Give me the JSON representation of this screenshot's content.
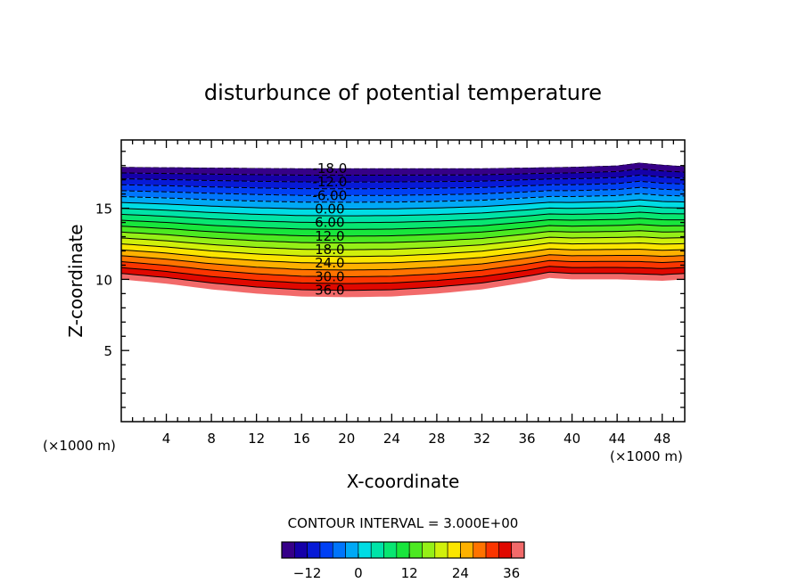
{
  "chart_data": {
    "type": "heatmap",
    "title": "disturbunce of potential temperature",
    "xlabel": "X-coordinate",
    "ylabel": "Z-coordinate",
    "x_unit_left": "(×1000 m)",
    "x_unit_right": "(×1000 m)",
    "xlim": [
      0,
      50
    ],
    "ylim": [
      0,
      19.8
    ],
    "x_ticks": [
      "4",
      "8",
      "12",
      "16",
      "20",
      "24",
      "28",
      "32",
      "36",
      "40",
      "44",
      "48"
    ],
    "y_ticks": [
      "5",
      "10",
      "15"
    ],
    "contour_interval_text": "CONTOUR INTERVAL = 3.000E+00",
    "field_range": [
      -18,
      39
    ],
    "contour_labels": [
      {
        "text": "-18.0",
        "value": -18
      },
      {
        "text": "-12.0",
        "value": -12
      },
      {
        "text": "-6.00",
        "value": -6
      },
      {
        "text": "0.00",
        "value": 0
      },
      {
        "text": "6.00",
        "value": 6
      },
      {
        "text": "12.0",
        "value": 12
      },
      {
        "text": "18.0",
        "value": 18
      },
      {
        "text": "24.0",
        "value": 24
      },
      {
        "text": "30.0",
        "value": 30
      },
      {
        "text": "36.0",
        "value": 36
      }
    ],
    "bottom_boundary": {
      "x": [
        0,
        4,
        8,
        12,
        16,
        20,
        24,
        28,
        32,
        36,
        38,
        40,
        44,
        48,
        50
      ],
      "z": [
        10.0,
        9.7,
        9.3,
        9.0,
        8.8,
        8.75,
        8.8,
        9.0,
        9.3,
        9.8,
        10.1,
        10.0,
        10.0,
        9.9,
        10.0
      ]
    },
    "top_boundary": {
      "x": [
        0,
        8,
        16,
        24,
        32,
        40,
        44,
        46,
        48,
        50
      ],
      "z": [
        17.9,
        17.85,
        17.8,
        17.8,
        17.8,
        17.9,
        18.0,
        18.2,
        18.05,
        17.95
      ]
    },
    "colorbar": {
      "range": [
        -18,
        39
      ],
      "tick_values": [
        -12,
        0,
        12,
        24,
        36
      ],
      "tick_labels": [
        "−12",
        "0",
        "12",
        "24",
        "36"
      ]
    },
    "colors": {
      "negative_contour_style": "dashed",
      "positive_contour_style": "solid"
    }
  }
}
